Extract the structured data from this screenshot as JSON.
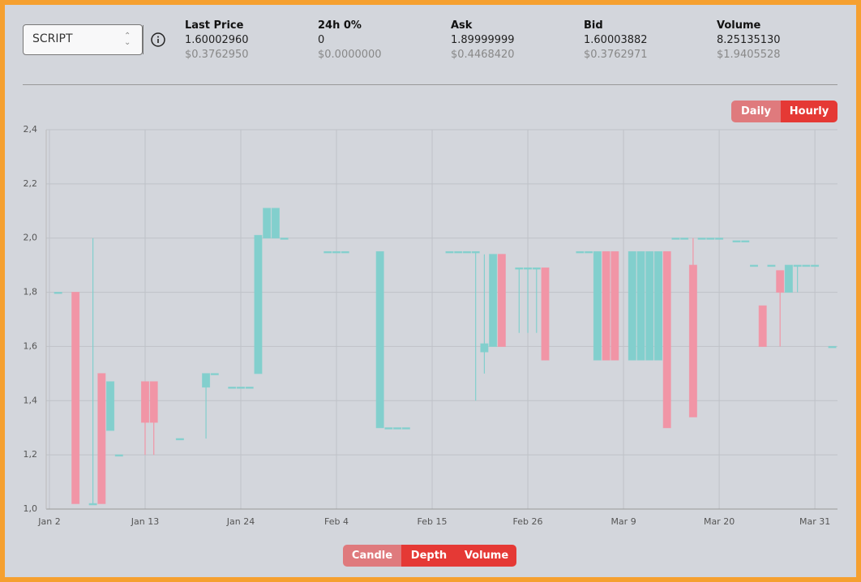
{
  "header": {
    "selector": "SCRIPT",
    "stats": [
      {
        "label": "Last Price",
        "value": "1.60002960",
        "usd": "$0.3762950"
      },
      {
        "label": "24h 0%",
        "value": "0",
        "usd": "$0.0000000"
      },
      {
        "label": "Ask",
        "value": "1.89999999",
        "usd": "$0.4468420"
      },
      {
        "label": "Bid",
        "value": "1.60003882",
        "usd": "$0.3762971"
      },
      {
        "label": "Volume",
        "value": "8.25135130",
        "usd": "$1.9405528"
      }
    ]
  },
  "period_buttons": [
    "Daily",
    "Hourly"
  ],
  "view_buttons": [
    "Candle",
    "Depth",
    "Volume"
  ],
  "chart_data": {
    "type": "candlestick",
    "up_color": "#82cfcd",
    "down_color": "#f195a6",
    "grid": true,
    "xlim": [
      -0.37,
      90.6
    ],
    "ylim": [
      1.0,
      2.4
    ],
    "xticks": [
      {
        "value": 0,
        "label": "Jan 2"
      },
      {
        "value": 11,
        "label": "Jan 13"
      },
      {
        "value": 22,
        "label": "Jan 24"
      },
      {
        "value": 33,
        "label": "Feb 4"
      },
      {
        "value": 44,
        "label": "Feb 15"
      },
      {
        "value": 55,
        "label": "Feb 26"
      },
      {
        "value": 66,
        "label": "Mar 9"
      },
      {
        "value": 77,
        "label": "Mar 20"
      },
      {
        "value": 88,
        "label": "Mar 31"
      }
    ],
    "yticks": [
      {
        "value": 1.0,
        "label": "1,0"
      },
      {
        "value": 1.2,
        "label": "1,2"
      },
      {
        "value": 1.4,
        "label": "1,4"
      },
      {
        "value": 1.6,
        "label": "1,6"
      },
      {
        "value": 1.8,
        "label": "1,8"
      },
      {
        "value": 2.0,
        "label": "2,0"
      },
      {
        "value": 2.2,
        "label": "2,2"
      },
      {
        "value": 2.4,
        "label": "2,4"
      }
    ],
    "x": [
      1,
      3,
      5,
      6,
      7,
      8,
      11,
      12,
      15,
      18,
      19,
      21,
      22,
      23,
      24,
      25,
      26,
      27,
      32,
      33,
      34,
      38,
      39,
      40,
      41,
      46,
      47,
      48,
      49,
      50,
      51,
      52,
      54,
      55,
      56,
      57,
      61,
      62,
      63,
      64,
      65,
      67,
      68,
      69,
      70,
      71,
      72,
      73,
      74,
      75,
      76,
      77,
      79,
      80,
      81,
      82,
      83,
      84,
      85,
      86,
      87,
      88,
      90
    ],
    "open": [
      1.8,
      1.8,
      1.02,
      1.5,
      1.29,
      1.2,
      1.47,
      1.47,
      1.26,
      1.45,
      1.5,
      1.45,
      1.45,
      1.45,
      1.5,
      2.0,
      2.0,
      2.0,
      1.95,
      1.95,
      1.95,
      1.3,
      1.3,
      1.3,
      1.3,
      1.95,
      1.95,
      1.95,
      1.95,
      1.58,
      1.6,
      1.94,
      1.89,
      1.89,
      1.89,
      1.89,
      1.95,
      1.95,
      1.55,
      1.95,
      1.95,
      1.55,
      1.55,
      1.55,
      1.55,
      1.95,
      2.0,
      2.0,
      1.9,
      2.0,
      2.0,
      2.0,
      1.99,
      1.99,
      1.9,
      1.75,
      1.9,
      1.88,
      1.8,
      1.9,
      1.9,
      1.9,
      1.6
    ],
    "high": [
      1.8,
      1.8,
      2.0,
      1.5,
      1.47,
      1.2,
      1.47,
      1.47,
      1.26,
      1.5,
      1.5,
      1.45,
      1.45,
      1.45,
      2.01,
      2.11,
      2.11,
      2.0,
      1.95,
      1.95,
      1.95,
      1.95,
      1.3,
      1.3,
      1.3,
      1.95,
      1.95,
      1.95,
      1.95,
      1.94,
      1.94,
      1.94,
      1.89,
      1.89,
      1.89,
      1.89,
      1.95,
      1.95,
      1.95,
      1.95,
      1.95,
      1.95,
      1.95,
      1.95,
      1.95,
      1.95,
      2.0,
      2.0,
      2.0,
      2.0,
      2.0,
      2.0,
      1.99,
      1.99,
      1.9,
      1.75,
      1.9,
      1.88,
      1.9,
      1.9,
      1.9,
      1.9,
      1.6
    ],
    "low": [
      1.8,
      1.02,
      1.02,
      1.02,
      1.29,
      1.2,
      1.2,
      1.2,
      1.26,
      1.26,
      1.5,
      1.45,
      1.45,
      1.45,
      1.5,
      2.0,
      2.0,
      2.0,
      1.95,
      1.95,
      1.95,
      1.3,
      1.3,
      1.3,
      1.3,
      1.95,
      1.95,
      1.95,
      1.4,
      1.5,
      1.6,
      1.6,
      1.65,
      1.65,
      1.65,
      1.55,
      1.95,
      1.95,
      1.55,
      1.55,
      1.55,
      1.55,
      1.55,
      1.55,
      1.55,
      1.3,
      2.0,
      2.0,
      1.34,
      2.0,
      2.0,
      2.0,
      1.99,
      1.99,
      1.9,
      1.6,
      1.9,
      1.6,
      1.8,
      1.8,
      1.9,
      1.9,
      1.6
    ],
    "close": [
      1.8,
      1.02,
      1.02,
      1.02,
      1.47,
      1.2,
      1.32,
      1.32,
      1.26,
      1.5,
      1.5,
      1.45,
      1.45,
      1.45,
      2.01,
      2.11,
      2.11,
      2.0,
      1.95,
      1.95,
      1.95,
      1.95,
      1.3,
      1.3,
      1.3,
      1.95,
      1.95,
      1.95,
      1.95,
      1.61,
      1.94,
      1.6,
      1.89,
      1.89,
      1.89,
      1.55,
      1.95,
      1.95,
      1.95,
      1.55,
      1.55,
      1.95,
      1.95,
      1.95,
      1.95,
      1.3,
      2.0,
      2.0,
      1.34,
      2.0,
      2.0,
      2.0,
      1.99,
      1.99,
      1.9,
      1.6,
      1.9,
      1.8,
      1.9,
      1.9,
      1.9,
      1.9,
      1.6
    ]
  }
}
